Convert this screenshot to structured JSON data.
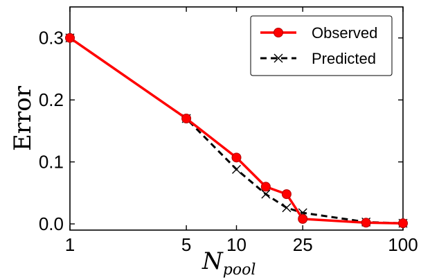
{
  "chart_data": {
    "type": "line",
    "xscale": "log",
    "x": [
      1,
      5,
      10,
      15,
      20,
      25,
      60,
      100
    ],
    "series": [
      {
        "name": "Observed",
        "color": "#ff0000",
        "marker": "circle",
        "line_style": "solid",
        "values": [
          0.3,
          0.17,
          0.107,
          0.06,
          0.048,
          0.008,
          0.002,
          0.001
        ]
      },
      {
        "name": "Predicted",
        "color": "#000000",
        "marker": "x",
        "line_style": "dashed",
        "values": [
          0.3,
          0.17,
          0.088,
          0.048,
          0.026,
          0.018,
          0.003,
          0.001
        ]
      }
    ],
    "xticks": [
      1,
      5,
      10,
      25,
      100
    ],
    "xtick_labels": [
      "1",
      "5",
      "10",
      "25",
      "100"
    ],
    "yticks": [
      0.0,
      0.1,
      0.2,
      0.3
    ],
    "ytick_labels": [
      "0.0",
      "0.1",
      "0.2",
      "0.3"
    ],
    "xlim": [
      1,
      100
    ],
    "ylim": [
      -0.01,
      0.35
    ],
    "title": "",
    "xlabel": "N",
    "xlabel_subscript": "pool",
    "ylabel": "Error",
    "grid": false,
    "legend_position": "top-right"
  }
}
